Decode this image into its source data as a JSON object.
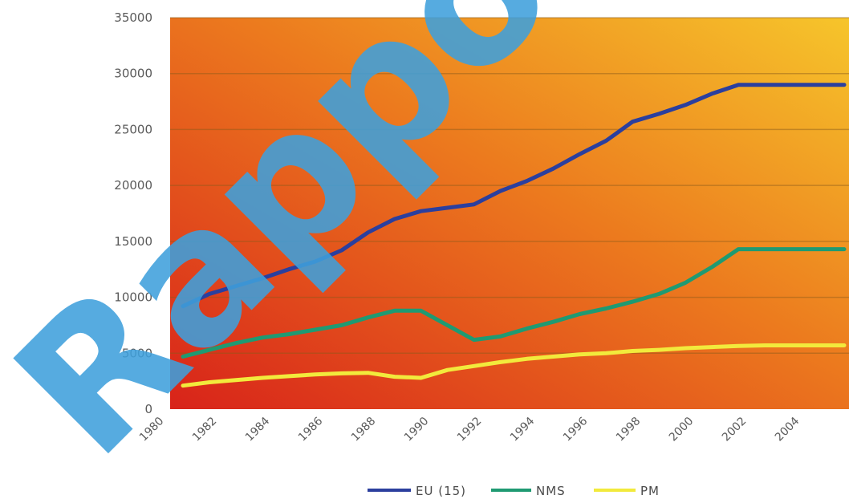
{
  "chart_data": {
    "type": "line",
    "title": "",
    "xlabel": "",
    "ylabel": "",
    "ylim": [
      0,
      35000
    ],
    "yticks": [
      0,
      5000,
      10000,
      15000,
      20000,
      25000,
      30000,
      35000
    ],
    "x_tick_labels": [
      "1980",
      "1982",
      "1984",
      "1986",
      "1988",
      "1990",
      "1992",
      "1994",
      "1996",
      "1998",
      "2000",
      "2002",
      "2004"
    ],
    "x": [
      1980,
      1981,
      1982,
      1983,
      1984,
      1985,
      1986,
      1987,
      1988,
      1989,
      1990,
      1991,
      1992,
      1993,
      1994,
      1995,
      1996,
      1997,
      1998,
      1999,
      2000,
      2001,
      2002,
      2003,
      2004,
      2005
    ],
    "grid": true,
    "legend_position": "bottom",
    "series": [
      {
        "name": "EU (15)",
        "color": "#2b3f9e",
        "values": [
          9200,
          10300,
          11000,
          11700,
          12500,
          13200,
          14200,
          15800,
          17000,
          17700,
          18000,
          18300,
          19500,
          20400,
          21500,
          22800,
          24000,
          25700,
          26400,
          27200,
          28200,
          29000,
          29000,
          29000,
          29000,
          29000
        ]
      },
      {
        "name": "NMS",
        "color": "#1f9a72",
        "values": [
          4700,
          5300,
          5900,
          6400,
          6700,
          7100,
          7500,
          8200,
          8800,
          8800,
          7500,
          6200,
          6500,
          7200,
          7800,
          8500,
          9000,
          9600,
          10300,
          11300,
          12700,
          14300,
          14300,
          14300,
          14300,
          14300
        ]
      },
      {
        "name": "PM",
        "color": "#f2ea3c",
        "values": [
          2100,
          2400,
          2600,
          2800,
          2950,
          3100,
          3200,
          3250,
          2900,
          2800,
          3500,
          3850,
          4200,
          4500,
          4700,
          4900,
          5000,
          5200,
          5300,
          5450,
          5550,
          5650,
          5700,
          5700,
          5700,
          5700
        ]
      }
    ]
  },
  "watermark": {
    "text": "Rappor"
  }
}
